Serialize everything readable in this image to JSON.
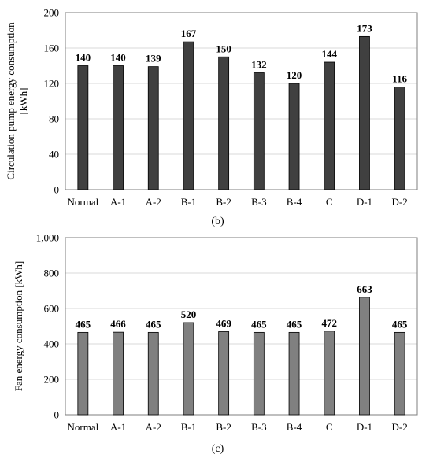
{
  "chart_data": [
    {
      "type": "bar",
      "panel_label": "(b)",
      "ylabel": "Circulation  pump energy consumption [kWh]",
      "ylabel_lines": [
        "Circulation  pump energy consumption",
        "[kWh]"
      ],
      "categories": [
        "Normal",
        "A-1",
        "A-2",
        "B-1",
        "B-2",
        "B-3",
        "B-4",
        "C",
        "D-1",
        "D-2"
      ],
      "values": [
        140,
        140,
        139,
        167,
        150,
        132,
        120,
        144,
        173,
        116
      ],
      "ylim": [
        0,
        200
      ],
      "yticks": [
        0,
        40,
        80,
        120,
        160,
        200
      ],
      "ytick_labels": [
        "0",
        "40",
        "80",
        "120",
        "160",
        "200"
      ],
      "bar_color": "#404040",
      "grid": true
    },
    {
      "type": "bar",
      "panel_label": "(c)",
      "ylabel": "Fan energy consumption [kWh]",
      "ylabel_lines": [
        "Fan energy consumption [kWh]"
      ],
      "categories": [
        "Normal",
        "A-1",
        "A-2",
        "B-1",
        "B-2",
        "B-3",
        "B-4",
        "C",
        "D-1",
        "D-2"
      ],
      "values": [
        465,
        466,
        465,
        520,
        469,
        465,
        465,
        472,
        663,
        465
      ],
      "ylim": [
        0,
        1000
      ],
      "yticks": [
        0,
        200,
        400,
        600,
        800,
        1000
      ],
      "ytick_labels": [
        "0",
        "200",
        "400",
        "600",
        "800",
        "1,000"
      ],
      "bar_color": "#808080",
      "grid": true
    }
  ]
}
